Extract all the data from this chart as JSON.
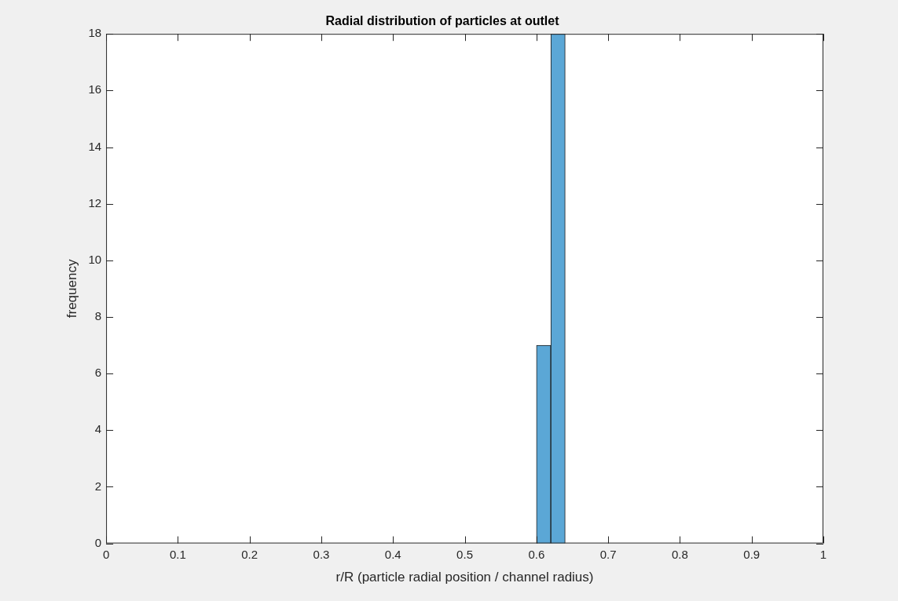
{
  "chart_data": {
    "type": "histogram",
    "title": "Radial distribution of particles at outlet",
    "xlabel": "r/R (particle radial position / channel radius)",
    "ylabel": "frequency",
    "bins": [
      0.6,
      0.62,
      0.64
    ],
    "values": [
      7,
      18
    ],
    "color": "#5ba7d6",
    "xlim": [
      0,
      1
    ],
    "xticks": [
      0,
      0.1,
      0.2,
      0.3,
      0.4,
      0.5,
      0.6,
      0.7,
      0.8,
      0.9,
      1
    ],
    "ylim": [
      0,
      18
    ],
    "yticks": [
      0,
      2,
      4,
      6,
      8,
      10,
      12,
      14,
      16,
      18
    ],
    "grid": false,
    "legend": false
  }
}
